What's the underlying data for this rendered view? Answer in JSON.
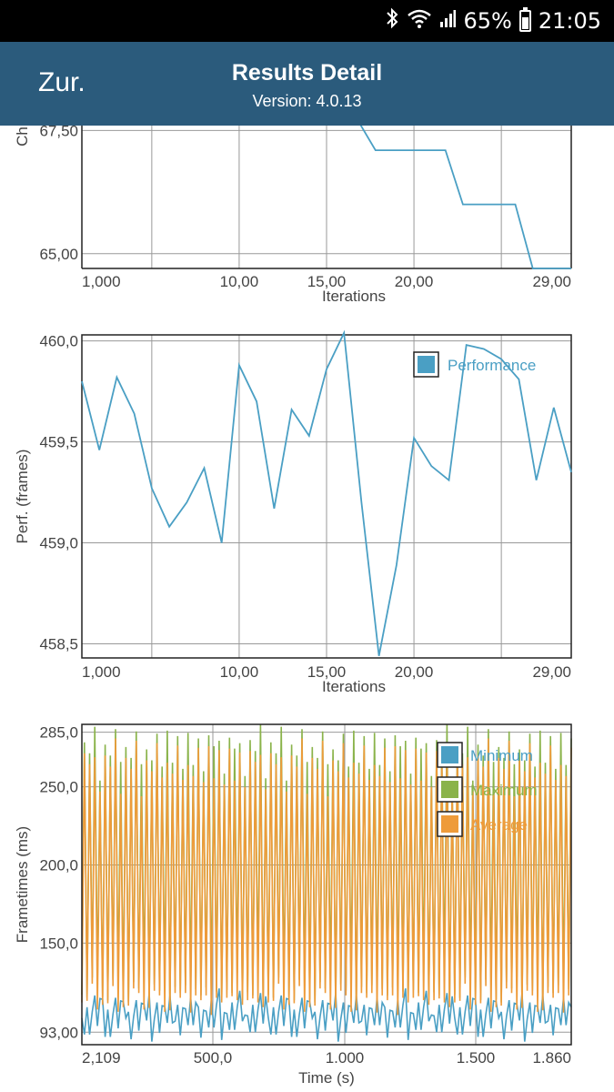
{
  "status_bar": {
    "battery": "65%",
    "time": "21:05",
    "icons": [
      "bluetooth-icon",
      "wifi-icon",
      "signal-icon",
      "battery-icon"
    ]
  },
  "app_bar": {
    "back_label": "Zur.",
    "title": "Results Detail",
    "subtitle": "Version: 4.0.13"
  },
  "colors": {
    "app_bar": "#2b5b7c",
    "line": "#4a9fc4",
    "minimum": "#4a9fc4",
    "maximum": "#8ab34a",
    "average": "#ee9b3a"
  },
  "chart_data": [
    {
      "type": "line",
      "ylabel": "Ch",
      "xlabel": "Iterations",
      "x_ticks": [
        "1,000",
        "10,00",
        "15,00",
        "20,00",
        "29,00"
      ],
      "y_ticks": [
        "65,00",
        "67,50"
      ],
      "ylim": [
        64.7,
        67.6
      ],
      "xlim": [
        1,
        29
      ],
      "grid": true,
      "series": [
        {
          "x": [
            16.8,
            17.8,
            18.8,
            19.8,
            20.8,
            21.8,
            22.8,
            23.8,
            24.8,
            25.8,
            26.8,
            27.8,
            28.8,
            29
          ],
          "values": [
            67.7,
            67.1,
            67.1,
            67.1,
            67.1,
            67.1,
            66.0,
            66.0,
            66.0,
            66.0,
            64.7,
            64.7,
            64.7,
            64.7
          ]
        }
      ]
    },
    {
      "type": "line",
      "ylabel": "Perf. (frames)",
      "xlabel": "Iterations",
      "x_ticks": [
        "1,000",
        "10,00",
        "15,00",
        "20,00",
        "29,00"
      ],
      "y_ticks": [
        "458,5",
        "459,0",
        "459,5",
        "460,0"
      ],
      "ylim": [
        458.43,
        460.03
      ],
      "xlim": [
        1,
        29
      ],
      "grid": true,
      "legend": "top-right",
      "series": [
        {
          "name": "Performance",
          "x": [
            1,
            2,
            3,
            4,
            5,
            6,
            7,
            8,
            9,
            10,
            11,
            12,
            13,
            14,
            15,
            16,
            17,
            18,
            19,
            20,
            21,
            22,
            23,
            24,
            25,
            26,
            27,
            28,
            29
          ],
          "values": [
            459.8,
            459.46,
            459.82,
            459.64,
            459.27,
            459.08,
            459.2,
            459.37,
            459.0,
            459.88,
            459.7,
            459.17,
            459.66,
            459.53,
            459.86,
            460.04,
            459.2,
            458.44,
            458.89,
            459.52,
            459.38,
            459.31,
            459.98,
            459.96,
            459.91,
            459.81,
            459.31,
            459.67,
            459.35
          ]
        }
      ]
    },
    {
      "type": "line",
      "ylabel": "Frametimes (ms)",
      "xlabel": "Time (s)",
      "x_ticks": [
        "2,109",
        "500,0",
        "1.000",
        "1.500",
        "1.860"
      ],
      "y_ticks": [
        "93,00",
        "150,0",
        "200,0",
        "250,0",
        "285,0"
      ],
      "ylim": [
        85,
        290
      ],
      "grid": true,
      "legend": "top-right",
      "series": [
        {
          "name": "Minimum",
          "values": [
            108,
            96,
            112,
            93,
            106,
            115,
            94,
            110
          ]
        },
        {
          "name": "Maximum",
          "values": [
            120,
            280,
            115,
            270,
            125,
            284,
            118,
            260
          ]
        },
        {
          "name": "Average",
          "values": [
            112,
            270,
            110,
            260,
            118,
            275,
            112,
            250
          ]
        }
      ]
    }
  ]
}
